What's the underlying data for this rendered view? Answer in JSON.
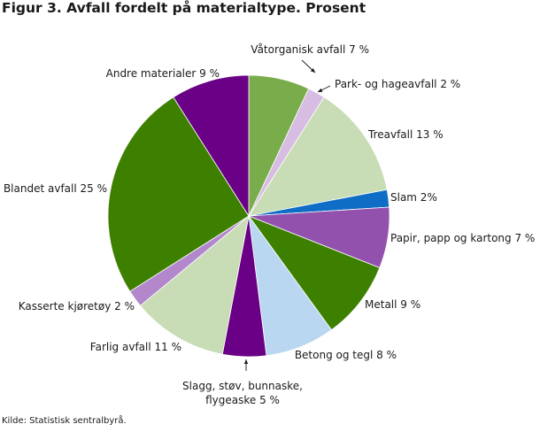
{
  "title": "Figur 3. Avfall fordelt på materialtype. Prosent",
  "source": "Kilde: Statistisk sentralbyrå.",
  "chart_data": {
    "type": "pie",
    "title": "Figur 3. Avfall fordelt på materialtype. Prosent",
    "unit": "%",
    "start": "12 o'clock, clockwise",
    "slices": [
      {
        "name": "Våtorganisk avfall",
        "value": 7,
        "color": "#79ad4c",
        "label": "Våtorganisk avfall 7 %"
      },
      {
        "name": "Park- og hageavfall",
        "value": 2,
        "color": "#d7bde2",
        "label": "Park- og hageavfall 2 %"
      },
      {
        "name": "Treavfall",
        "value": 13,
        "color": "#c8ddb5",
        "label": "Treavfall 13 %"
      },
      {
        "name": "Slam",
        "value": 2,
        "color": "#0f6dc5",
        "label": "Slam 2%"
      },
      {
        "name": "Papir, papp og kartong",
        "value": 7,
        "color": "#9351ae",
        "label": "Papir, papp og kartong 7 %"
      },
      {
        "name": "Metall",
        "value": 9,
        "color": "#3d8000",
        "label": "Metall 9 %"
      },
      {
        "name": "Betong og tegl",
        "value": 8,
        "color": "#b9d7f0",
        "label": "Betong og tegl 8 %"
      },
      {
        "name": "Slagg, støv, bunnaske, flygeaske",
        "value": 5,
        "color": "#690085",
        "label": [
          "Slagg, støv, bunnaske,",
          "flygeaske 5 %"
        ]
      },
      {
        "name": "Farlig avfall",
        "value": 11,
        "color": "#c8ddb5",
        "label": "Farlig avfall 11 %"
      },
      {
        "name": "Kasserte kjøretøy",
        "value": 2,
        "color": "#b287cc",
        "label": "Kasserte kjøretøy 2 %"
      },
      {
        "name": "Blandet avfall",
        "value": 25,
        "color": "#3d8000",
        "label": "Blandet avfall 25 %"
      },
      {
        "name": "Andre materialer",
        "value": 9,
        "color": "#690085",
        "label": "Andre materialer 9 %"
      }
    ]
  }
}
